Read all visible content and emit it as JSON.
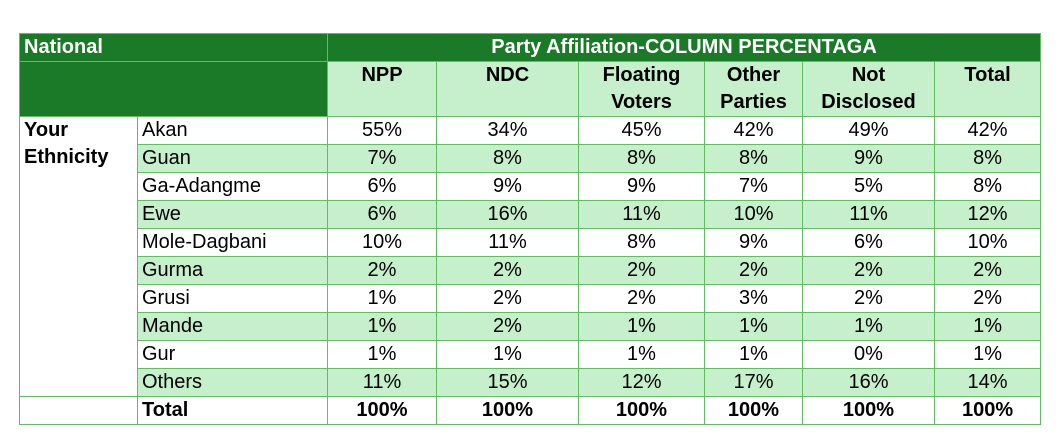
{
  "chart_data": {
    "type": "table",
    "corner_label": "National",
    "group_header": "Party Affiliation-COLUMN PERCENTAGA",
    "row_group_label": "Your Ethnicity",
    "columns": [
      "NPP",
      "NDC",
      "Floating Voters",
      "Other Parties",
      "Not Disclosed",
      "Total"
    ],
    "rows": [
      {
        "label": "Akan",
        "values": [
          "55%",
          "34%",
          "45%",
          "42%",
          "49%",
          "42%"
        ]
      },
      {
        "label": "Guan",
        "values": [
          "7%",
          "8%",
          "8%",
          "8%",
          "9%",
          "8%"
        ]
      },
      {
        "label": "Ga-Adangme",
        "values": [
          "6%",
          "9%",
          "9%",
          "7%",
          "5%",
          "8%"
        ]
      },
      {
        "label": "Ewe",
        "values": [
          "6%",
          "16%",
          "11%",
          "10%",
          "11%",
          "12%"
        ]
      },
      {
        "label": "Mole-Dagbani",
        "values": [
          "10%",
          "11%",
          "8%",
          "9%",
          "6%",
          "10%"
        ]
      },
      {
        "label": "Gurma",
        "values": [
          "2%",
          "2%",
          "2%",
          "2%",
          "2%",
          "2%"
        ]
      },
      {
        "label": "Grusi",
        "values": [
          "1%",
          "2%",
          "2%",
          "3%",
          "2%",
          "2%"
        ]
      },
      {
        "label": "Mande",
        "values": [
          "1%",
          "2%",
          "1%",
          "1%",
          "1%",
          "1%"
        ]
      },
      {
        "label": "Gur",
        "values": [
          "1%",
          "1%",
          "1%",
          "1%",
          "0%",
          "1%"
        ]
      },
      {
        "label": "Others",
        "values": [
          "11%",
          "15%",
          "12%",
          "17%",
          "16%",
          "14%"
        ]
      }
    ],
    "total_row": {
      "label": "Total",
      "values": [
        "100%",
        "100%",
        "100%",
        "100%",
        "100%",
        "100%"
      ]
    }
  },
  "colors": {
    "header_green": "#1b7a28",
    "light_green": "#c6efcb",
    "border": "#5fbf5f"
  }
}
